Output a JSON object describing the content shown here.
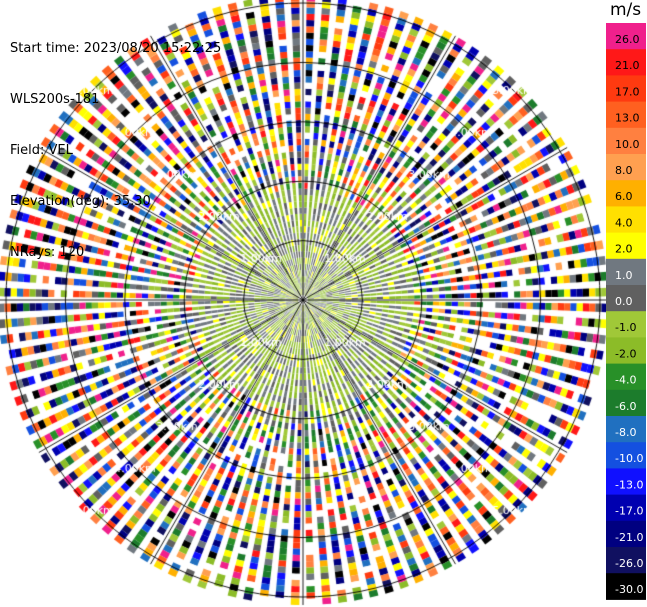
{
  "header": {
    "start_time": "Start time: 2023/08/20 15:22:25",
    "instrument": "WLS200s-181",
    "field": "Field: VEL",
    "elevation": "Elevation(deg): 35.30",
    "nrays": "NRays: 120"
  },
  "colorbar": {
    "unit": "m/s",
    "levels": [
      {
        "label": "26.0",
        "color": "#f0208c"
      },
      {
        "label": "21.0",
        "color": "#ff1818"
      },
      {
        "label": "17.0",
        "color": "#ff3a10"
      },
      {
        "label": "13.0",
        "color": "#ff6020"
      },
      {
        "label": "10.0",
        "color": "#ff8040"
      },
      {
        "label": "8.0",
        "color": "#ffa050"
      },
      {
        "label": "6.0",
        "color": "#ffb000"
      },
      {
        "label": "4.0",
        "color": "#ffe000"
      },
      {
        "label": "2.0",
        "color": "#ffff00"
      },
      {
        "label": "1.0",
        "color": "#707880"
      },
      {
        "label": "0.0",
        "color": "#606060"
      },
      {
        "label": "-1.0",
        "color": "#a0c838"
      },
      {
        "label": "-2.0",
        "color": "#8cbc28"
      },
      {
        "label": "-4.0",
        "color": "#289028"
      },
      {
        "label": "-6.0",
        "color": "#1c7c2c"
      },
      {
        "label": "-8.0",
        "color": "#2070c0"
      },
      {
        "label": "-10.0",
        "color": "#1450e0"
      },
      {
        "label": "-13.0",
        "color": "#1010ff"
      },
      {
        "label": "-17.0",
        "color": "#0000b0"
      },
      {
        "label": "-21.0",
        "color": "#000080"
      },
      {
        "label": "-26.0",
        "color": "#101060"
      },
      {
        "label": "-30.0",
        "color": "#000000"
      }
    ]
  },
  "chart_data": {
    "type": "heatmap",
    "title": "",
    "field": "VEL",
    "units": "m/s",
    "nrays": 120,
    "vmin": -30.0,
    "vmax": 26.0,
    "range_rings_km": [
      1.0,
      2.0,
      3.0,
      4.0,
      5.0
    ],
    "range_labels": [
      "1.00km",
      "2.00km",
      "3.00km",
      "4.00km",
      "5.00km"
    ],
    "max_range_km": 5.0,
    "near_field_summary": "Within about 2.0 km: mostly 0.0 (gray) and -1.0 to -2.0 (light green) velocities; beyond: highly noisy mixed velocities."
  }
}
